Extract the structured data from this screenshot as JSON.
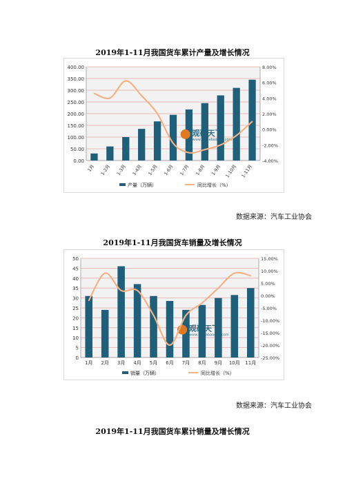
{
  "document": {
    "sections": [
      {
        "title": "2019年1-11月我国货车累计产量及增长情况",
        "source": "数据来源：汽车工业协会"
      },
      {
        "title": "2019年1-11月我国货车销量及增长情况",
        "source": "数据来源：汽车工业协会"
      },
      {
        "title": "2019年1-11月我国货车累计销量及增长情况"
      }
    ]
  },
  "watermark": {
    "brand": "观研天下",
    "url": "www.chinabaogao.com"
  },
  "colors": {
    "bar": "#1f5f7a",
    "line": "#f4b183",
    "grid": "#e3a9a9",
    "plot_bg": "#f2f2f2"
  },
  "chart_data": [
    {
      "type": "bar",
      "categories": [
        "1月",
        "1-2月",
        "1-3月",
        "1-4月",
        "1-5月",
        "1-6月",
        "1-7月",
        "1-8月",
        "1-9月",
        "1-10月",
        "1-11月"
      ],
      "series": [
        {
          "name": "产量（万辆）",
          "type": "bar",
          "axis": "left",
          "values": [
            30,
            60,
            100,
            135,
            167,
            195,
            218,
            245,
            278,
            310,
            345
          ]
        },
        {
          "name": "同比增长（%）",
          "type": "line",
          "axis": "right",
          "values": [
            4.6,
            4.0,
            6.2,
            4.3,
            2.0,
            -1.8,
            -3.0,
            -2.6,
            -2.0,
            -0.8,
            1.0
          ]
        }
      ],
      "y_left": {
        "ticks": [
          "0.00",
          "50.00",
          "100.00",
          "150.00",
          "200.00",
          "250.00",
          "300.00",
          "350.00",
          "400.00"
        ],
        "min": 0,
        "max": 400
      },
      "y_right": {
        "ticks": [
          "-4.00%",
          "-2.00%",
          "0.00%",
          "2.00%",
          "4.00%",
          "6.00%",
          "8.00%"
        ],
        "min": -4,
        "max": 8
      },
      "x_rotated": true
    },
    {
      "type": "bar",
      "categories": [
        "1月",
        "2月",
        "3月",
        "4月",
        "5月",
        "6月",
        "7月",
        "8月",
        "9月",
        "10月",
        "11月"
      ],
      "series": [
        {
          "name": "销量（万辆）",
          "type": "bar",
          "axis": "left",
          "values": [
            31,
            24,
            46,
            37,
            31,
            28.5,
            24,
            26.5,
            30,
            31.5,
            35
          ]
        },
        {
          "name": "同比增长（%）",
          "type": "line",
          "axis": "right",
          "values": [
            -2,
            9,
            2,
            2,
            -8,
            -20,
            -8,
            -3,
            3,
            9,
            8
          ]
        }
      ],
      "y_left": {
        "ticks": [
          "0",
          "5",
          "10",
          "15",
          "20",
          "25",
          "30",
          "35",
          "40",
          "45",
          "50"
        ],
        "min": 0,
        "max": 50
      },
      "y_right": {
        "ticks": [
          "-25.00%",
          "-20.00%",
          "-15.00%",
          "-10.00%",
          "-5.00%",
          "0.00%",
          "5.00%",
          "10.00%",
          "15.00%"
        ],
        "min": -25,
        "max": 15
      },
      "x_rotated": false
    }
  ]
}
